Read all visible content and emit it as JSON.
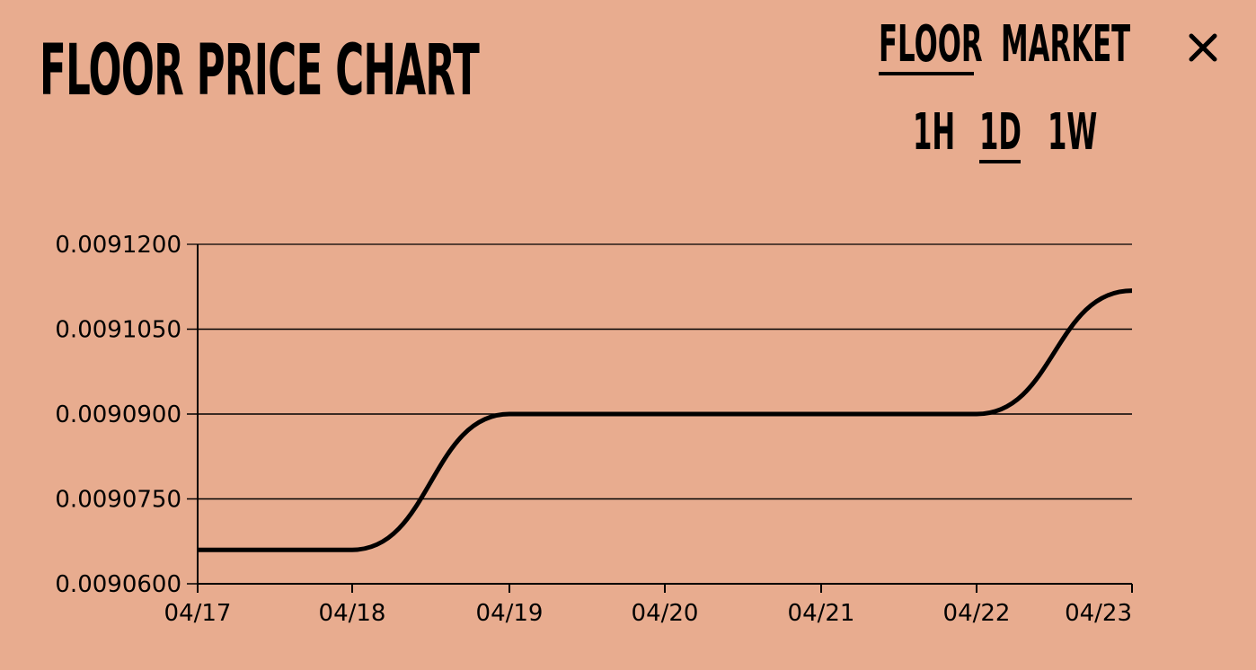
{
  "header": {
    "title": "FLOOR PRICE CHART"
  },
  "mode_tabs": [
    {
      "label": "FLOOR",
      "active": true
    },
    {
      "label": "MARKET",
      "active": false
    }
  ],
  "range_tabs": [
    {
      "label": "1H",
      "active": false
    },
    {
      "label": "1D",
      "active": true
    },
    {
      "label": "1W",
      "active": false
    }
  ],
  "close_icon": "close-icon",
  "colors": {
    "background": "#e8ac8f",
    "line": "#000000"
  },
  "chart_data": {
    "type": "line",
    "x": [
      "04/17",
      "04/18",
      "04/19",
      "04/20",
      "04/21",
      "04/22",
      "04/23"
    ],
    "values": [
      0.009066,
      0.009066,
      0.00909,
      0.00909,
      0.00909,
      0.00909,
      0.0091118
    ],
    "ylim": [
      0.00906,
      0.00912
    ],
    "yticks": [
      "0.0091200",
      "0.0091050",
      "0.0090900",
      "0.0090750",
      "0.0090600"
    ],
    "grid": true,
    "xlabel": "",
    "ylabel": ""
  }
}
